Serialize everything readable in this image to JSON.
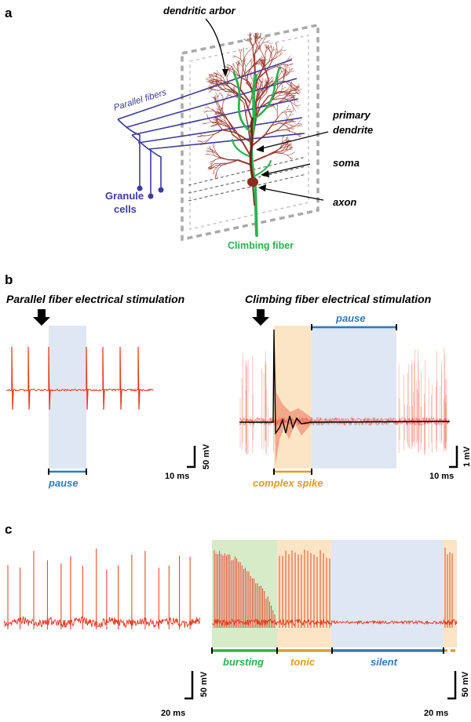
{
  "panel_a": {
    "letter": "a",
    "labels": {
      "dendritic_arbor": "dendritic arbor",
      "parallel_fibers": "Parallel fibers",
      "primary_dendrite_1": "primary",
      "primary_dendrite_2": "dendrite",
      "soma": "soma",
      "axon": "axon",
      "granule_cells_1": "Granule",
      "granule_cells_2": "cells",
      "climbing_fiber": "Climbing fiber"
    }
  },
  "panel_b": {
    "letter": "b",
    "left": {
      "title": "Parallel fiber electrical stimulation",
      "bracket_label": "pause",
      "scale_v": "50 mV",
      "scale_t": "10 ms"
    },
    "right": {
      "title": "Climbing fiber electrical stimulation",
      "pause_label": "pause",
      "complex_label": "complex spike",
      "scale_v": "1 mV",
      "scale_t": "10 ms"
    }
  },
  "panel_c": {
    "letter": "c",
    "segments": {
      "bursting": "bursting",
      "tonic": "tonic",
      "silent": "silent"
    },
    "scale_left_v": "50 mV",
    "scale_left_t": "20 ms",
    "scale_right_v": "50 mV",
    "scale_right_t": "20 ms"
  },
  "colors": {
    "trace": "#e8351e",
    "parallel": "#3c3c9c",
    "climbing": "#2bb24c",
    "pause_blue": "#2c7bc0",
    "complex_orange": "#e29a24",
    "shade_blue": "#dfe7f3",
    "shade_orange": "#fbe5c5",
    "shade_green": "#d6ecc8"
  }
}
